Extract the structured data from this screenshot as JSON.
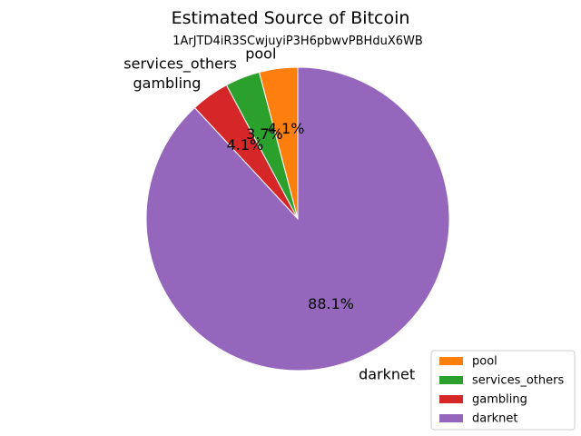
{
  "chart_data": {
    "type": "pie",
    "title": "Estimated Source of Bitcoin",
    "subtitle": "1ArJTD4iR3SCwjuyiP3H6pbwvPBHduX6WB",
    "categories": [
      "pool",
      "services_others",
      "gambling",
      "darknet"
    ],
    "values": [
      4.1,
      3.7,
      4.1,
      88.1
    ],
    "percent_labels": [
      "4.1%",
      "3.7%",
      "4.1%",
      "88.1%"
    ],
    "colors": [
      "#ff7f0e",
      "#2ca02c",
      "#d62728",
      "#9467bd"
    ],
    "start_angle_deg": 90,
    "direction": "counterclockwise",
    "legend": {
      "position": "lower-right",
      "entries": [
        "pool",
        "services_others",
        "gambling",
        "darknet"
      ]
    }
  }
}
